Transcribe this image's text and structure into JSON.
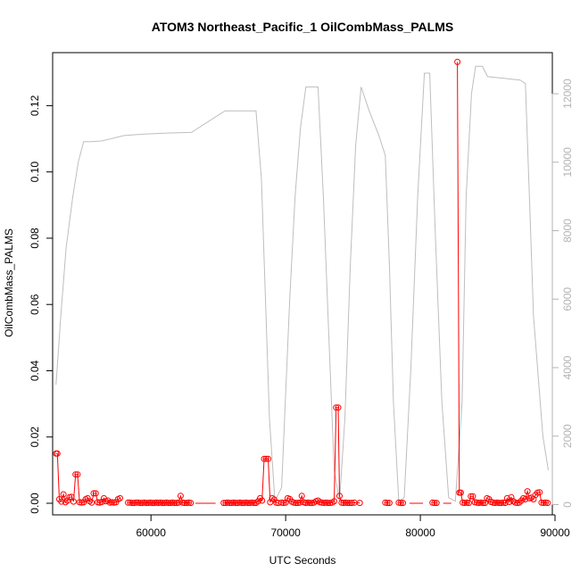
{
  "chart_data": {
    "type": "line",
    "title": "ATOM3 Northeast_Pacific_1 OilCombMass_PALMS",
    "xlabel": "UTC Seconds",
    "ylabel": "OilCombMass_PALMS",
    "xlim": [
      52700,
      89800
    ],
    "ylim": [
      -0.0035,
      0.136
    ],
    "x_ticks": [
      60000,
      70000,
      80000,
      90000
    ],
    "y_ticks": [
      0.0,
      0.02,
      0.04,
      0.06,
      0.08,
      0.1,
      0.12
    ],
    "y_tick_labels": [
      "0.00",
      "0.02",
      "0.04",
      "0.06",
      "0.08",
      "0.10",
      "0.12"
    ],
    "y2_lim": [
      -300,
      13200
    ],
    "y2_ticks": [
      0,
      2000,
      4000,
      6000,
      8000,
      10000,
      12000
    ],
    "grid": false,
    "colors": {
      "oil_mass": "#ff0000",
      "altitude": "#bebebe",
      "axis": "#000000",
      "right_axis": "#b3b3b3"
    },
    "series": [
      {
        "axis": "left",
        "color": "#ff0000",
        "marker": "open-circle",
        "segments": [
          [
            [
              52950,
              0.015
            ],
            [
              53050,
              0.015
            ],
            [
              53200,
              0.0012
            ],
            [
              53350,
              0.0005
            ],
            [
              53500,
              0.0027
            ],
            [
              53650,
              0.0003
            ],
            [
              53800,
              0.0008
            ],
            [
              53950,
              0.0018
            ],
            [
              54100,
              0.0019
            ],
            [
              54250,
              0.0005
            ],
            [
              54400,
              0.0087
            ],
            [
              54550,
              0.0087
            ],
            [
              54700,
              0.0003
            ],
            [
              54850,
              0.0002
            ],
            [
              55000,
              0.0003
            ],
            [
              55150,
              0.0012
            ],
            [
              55300,
              0.0015
            ],
            [
              55450,
              0.0006
            ],
            [
              55600,
              0.0002
            ],
            [
              55750,
              0.003
            ],
            [
              55900,
              0.003
            ],
            [
              56050,
              0.0003
            ],
            [
              56200,
              0.0002
            ],
            [
              56350,
              0.0004
            ],
            [
              56500,
              0.0015
            ],
            [
              56650,
              0.0006
            ],
            [
              56800,
              0.0008
            ],
            [
              56950,
              0.0002
            ],
            [
              57100,
              0.0003
            ],
            [
              57250,
              0.0002
            ],
            [
              57400,
              0.0003
            ],
            [
              57550,
              0.0012
            ],
            [
              57700,
              0.0015
            ]
          ],
          [
            [
              58300,
              0.0002
            ],
            [
              58450,
              0.0002
            ],
            [
              58600,
              0.0001
            ],
            [
              58750,
              0.0001
            ],
            [
              58900,
              0.0002
            ],
            [
              59050,
              0.0002
            ],
            [
              59200,
              0.0001
            ],
            [
              59350,
              0.0001
            ],
            [
              59500,
              0.0002
            ],
            [
              59650,
              0.0001
            ],
            [
              59800,
              0.0001
            ],
            [
              59950,
              0.0002
            ],
            [
              60100,
              0.0001
            ],
            [
              60250,
              0.0001
            ],
            [
              60400,
              0.0002
            ],
            [
              60550,
              0.0001
            ],
            [
              60700,
              0.0002
            ],
            [
              60850,
              0.0001
            ],
            [
              61000,
              0.0001
            ],
            [
              61150,
              0.0002
            ],
            [
              61300,
              0.0001
            ],
            [
              61450,
              0.0001
            ],
            [
              61600,
              0.0002
            ],
            [
              61750,
              0.0001
            ],
            [
              61900,
              0.0001
            ],
            [
              62050,
              0.0002
            ],
            [
              62200,
              0.0022
            ],
            [
              62350,
              0.0002
            ],
            [
              62500,
              0.0001
            ],
            [
              62650,
              0.0001
            ],
            [
              62800,
              0.0002
            ],
            [
              62950,
              0.0001
            ]
          ],
          [
            [
              63300,
              0.0
            ],
            [
              64800,
              0.0
            ]
          ],
          [
            [
              65400,
              0.0001
            ],
            [
              65550,
              0.0001
            ],
            [
              65700,
              0.0002
            ],
            [
              65850,
              0.0001
            ],
            [
              66000,
              0.0001
            ],
            [
              66150,
              0.0002
            ],
            [
              66300,
              0.0001
            ],
            [
              66450,
              0.0001
            ],
            [
              66600,
              0.0002
            ],
            [
              66750,
              0.0001
            ],
            [
              66900,
              0.0001
            ],
            [
              67050,
              0.0002
            ],
            [
              67200,
              0.0001
            ],
            [
              67350,
              0.0001
            ],
            [
              67500,
              0.0002
            ],
            [
              67650,
              0.0001
            ],
            [
              67800,
              0.0001
            ],
            [
              67950,
              0.0006
            ],
            [
              68100,
              0.0015
            ],
            [
              68250,
              0.0008
            ],
            [
              68400,
              0.0134
            ],
            [
              68550,
              0.0134
            ],
            [
              68700,
              0.0134
            ],
            [
              68850,
              0.0003
            ],
            [
              69000,
              0.0015
            ],
            [
              69150,
              0.0011
            ],
            [
              69300,
              0.0002
            ],
            [
              69450,
              0.0001
            ]
          ],
          [
            [
              69700,
              0.0002
            ],
            [
              69850,
              0.0001
            ],
            [
              70000,
              0.0002
            ],
            [
              70150,
              0.0015
            ],
            [
              70300,
              0.0013
            ],
            [
              70450,
              0.0005
            ],
            [
              70600,
              0.0002
            ],
            [
              70750,
              0.0001
            ],
            [
              70900,
              0.0001
            ],
            [
              71050,
              0.0002
            ],
            [
              71200,
              0.0022
            ],
            [
              71350,
              0.0003
            ],
            [
              71500,
              0.0001
            ],
            [
              71650,
              0.0002
            ],
            [
              71800,
              0.0001
            ],
            [
              71950,
              0.0001
            ],
            [
              72100,
              0.0002
            ],
            [
              72250,
              0.0006
            ],
            [
              72400,
              0.0008
            ],
            [
              72550,
              0.0003
            ],
            [
              72700,
              0.0002
            ],
            [
              72850,
              0.0001
            ],
            [
              73000,
              0.0002
            ],
            [
              73150,
              0.0001
            ],
            [
              73300,
              0.0001
            ],
            [
              73450,
              0.0002
            ],
            [
              73600,
              0.0006
            ],
            [
              73750,
              0.0289
            ],
            [
              73900,
              0.0289
            ],
            [
              74000,
              0.0022
            ],
            [
              74150,
              0.0002
            ],
            [
              74300,
              0.0001
            ],
            [
              74450,
              0.0002
            ],
            [
              74600,
              0.0001
            ],
            [
              74750,
              0.0001
            ],
            [
              74900,
              0.0001
            ],
            [
              75100,
              0.0002
            ],
            [
              75500,
              0.0001
            ]
          ],
          [
            [
              77400,
              0.0002
            ],
            [
              77550,
              0.0001
            ],
            [
              77700,
              0.0001
            ]
          ],
          [
            [
              78400,
              0.0002
            ],
            [
              78550,
              0.0001
            ],
            [
              78700,
              0.0001
            ]
          ],
          [
            [
              79200,
              0.0
            ],
            [
              80200,
              0.0
            ]
          ],
          [
            [
              80900,
              0.0002
            ],
            [
              81050,
              0.0001
            ],
            [
              81200,
              0.0001
            ]
          ],
          [
            [
              81700,
              0.0
            ],
            [
              82300,
              0.0
            ]
          ],
          [
            [
              82750,
              0.1332
            ],
            [
              82900,
              0.0032
            ],
            [
              83000,
              0.0032
            ],
            [
              83150,
              0.0002
            ],
            [
              83300,
              0.0001
            ],
            [
              83450,
              0.0002
            ],
            [
              83600,
              0.0001
            ],
            [
              83750,
              0.0021
            ],
            [
              83900,
              0.0021
            ],
            [
              84050,
              0.0003
            ],
            [
              84200,
              0.0002
            ],
            [
              84350,
              0.0001
            ],
            [
              84500,
              0.0002
            ],
            [
              84650,
              0.0001
            ],
            [
              84800,
              0.0001
            ],
            [
              84950,
              0.0015
            ],
            [
              85100,
              0.0012
            ],
            [
              85250,
              0.0004
            ],
            [
              85400,
              0.0002
            ],
            [
              85550,
              0.0001
            ],
            [
              85700,
              0.0002
            ],
            [
              85850,
              0.0001
            ],
            [
              86000,
              0.0001
            ],
            [
              86150,
              0.0002
            ],
            [
              86300,
              0.0001
            ],
            [
              86450,
              0.0015
            ],
            [
              86600,
              0.0004
            ],
            [
              86750,
              0.0018
            ],
            [
              86900,
              0.0006
            ],
            [
              87050,
              0.0002
            ],
            [
              87200,
              0.0001
            ],
            [
              87350,
              0.0002
            ],
            [
              87500,
              0.0008
            ],
            [
              87650,
              0.0015
            ],
            [
              87800,
              0.0012
            ],
            [
              87950,
              0.0036
            ],
            [
              88100,
              0.0015
            ],
            [
              88250,
              0.0017
            ],
            [
              88400,
              0.0012
            ],
            [
              88550,
              0.0025
            ],
            [
              88700,
              0.0032
            ],
            [
              88850,
              0.0033
            ],
            [
              89000,
              0.0002
            ],
            [
              89150,
              0.0001
            ],
            [
              89300,
              0.0002
            ],
            [
              89450,
              0.0001
            ]
          ]
        ]
      },
      {
        "axis": "right",
        "color": "#bebebe",
        "marker": "none",
        "points": [
          [
            52950,
            3500
          ],
          [
            53300,
            5500
          ],
          [
            53700,
            7500
          ],
          [
            54200,
            9000
          ],
          [
            54600,
            10000
          ],
          [
            55000,
            10600
          ],
          [
            55600,
            10600
          ],
          [
            56300,
            10620
          ],
          [
            57000,
            10680
          ],
          [
            58000,
            10780
          ],
          [
            59500,
            10820
          ],
          [
            61000,
            10850
          ],
          [
            62000,
            10860
          ],
          [
            63000,
            10870
          ],
          [
            65500,
            11500
          ],
          [
            66500,
            11500
          ],
          [
            67800,
            11500
          ],
          [
            68200,
            9500
          ],
          [
            68800,
            2500
          ],
          [
            69200,
            100
          ],
          [
            69700,
            500
          ],
          [
            70300,
            6000
          ],
          [
            70700,
            9000
          ],
          [
            71100,
            11000
          ],
          [
            71500,
            12200
          ],
          [
            72400,
            12200
          ],
          [
            72800,
            9000
          ],
          [
            73200,
            5000
          ],
          [
            73600,
            1000
          ],
          [
            74000,
            100
          ],
          [
            74400,
            2500
          ],
          [
            74800,
            7000
          ],
          [
            75200,
            10500
          ],
          [
            75600,
            12200
          ],
          [
            76200,
            11500
          ],
          [
            76900,
            10800
          ],
          [
            77400,
            10200
          ],
          [
            77700,
            7000
          ],
          [
            78000,
            3000
          ],
          [
            78400,
            100
          ],
          [
            78800,
            200
          ],
          [
            79300,
            4000
          ],
          [
            79800,
            9000
          ],
          [
            80300,
            12600
          ],
          [
            80700,
            12600
          ],
          [
            81100,
            8000
          ],
          [
            81600,
            3000
          ],
          [
            82100,
            200
          ],
          [
            82600,
            100
          ],
          [
            83100,
            3000
          ],
          [
            83400,
            9000
          ],
          [
            83800,
            12000
          ],
          [
            84100,
            12800
          ],
          [
            84600,
            12800
          ],
          [
            85000,
            12500
          ],
          [
            86200,
            12450
          ],
          [
            87400,
            12400
          ],
          [
            87800,
            12300
          ],
          [
            88100,
            9000
          ],
          [
            88400,
            5500
          ],
          [
            88800,
            3500
          ],
          [
            89100,
            2000
          ],
          [
            89500,
            1000
          ]
        ]
      }
    ]
  }
}
